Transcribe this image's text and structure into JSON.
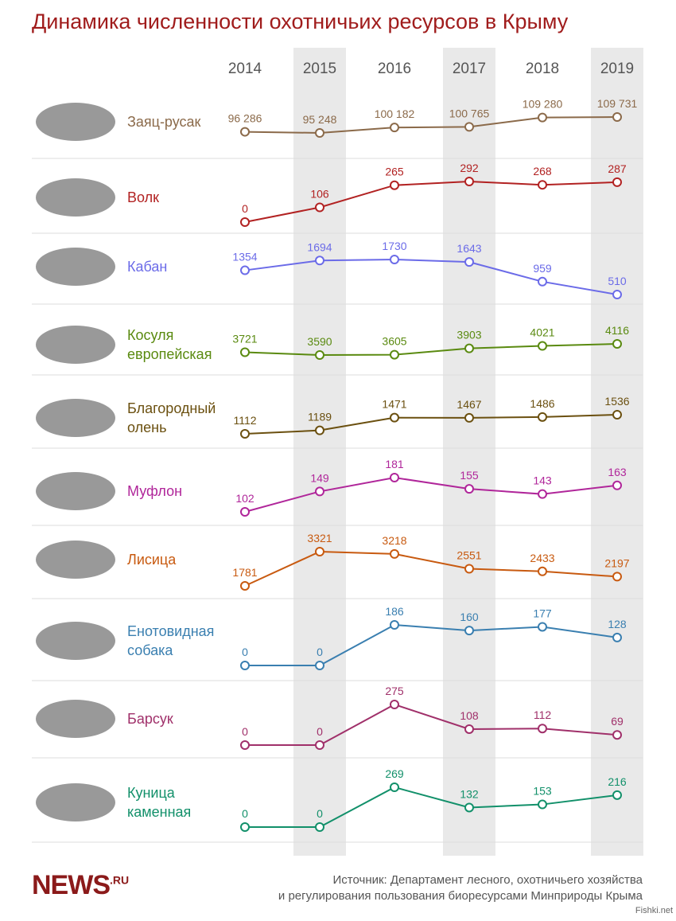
{
  "chart_data": {
    "type": "line",
    "title": "Динамика численности охотничьих ресурсов в Крыму",
    "categories": [
      2014,
      2015,
      2016,
      2017,
      2018,
      2019
    ],
    "series": [
      {
        "name": "Заяц-русак",
        "color": "#8b6a4a",
        "values": [
          96286,
          95248,
          100182,
          100765,
          109280,
          109731
        ],
        "value_labels": [
          "96 286",
          "95 248",
          "100 182",
          "100 765",
          "109 280",
          "109 731"
        ]
      },
      {
        "name": "Волк",
        "color": "#b22222",
        "values": [
          0,
          106,
          265,
          292,
          268,
          287
        ]
      },
      {
        "name": "Кабан",
        "color": "#6b6be8",
        "values": [
          1354,
          1694,
          1730,
          1643,
          959,
          510
        ]
      },
      {
        "name": "Косуля европейская",
        "color": "#5a8a10",
        "values": [
          3721,
          3590,
          3605,
          3903,
          4021,
          4116
        ]
      },
      {
        "name": "Благородный олень",
        "color": "#6b5010",
        "values": [
          1112,
          1189,
          1471,
          1467,
          1486,
          1536
        ]
      },
      {
        "name": "Муфлон",
        "color": "#b0269a",
        "values": [
          102,
          149,
          181,
          155,
          143,
          163
        ]
      },
      {
        "name": "Лисица",
        "color": "#c85a10",
        "values": [
          1781,
          3321,
          3218,
          2551,
          2433,
          2197
        ]
      },
      {
        "name": "Енотовидная собака",
        "color": "#3a7fb0",
        "values": [
          0,
          0,
          186,
          160,
          177,
          128
        ]
      },
      {
        "name": "Барсук",
        "color": "#a0306a",
        "values": [
          0,
          0,
          275,
          108,
          112,
          69
        ]
      },
      {
        "name": "Куница каменная",
        "color": "#12906a",
        "values": [
          0,
          0,
          269,
          132,
          153,
          216
        ]
      }
    ],
    "source": [
      "Источник: Департамент лесного, охотничьего хозяйства",
      "и регулирования пользования биоресурсами Минприроды Крыма"
    ],
    "logo": "NEWS",
    "logo_suffix": ".RU",
    "watermark": "Fishki.net"
  }
}
